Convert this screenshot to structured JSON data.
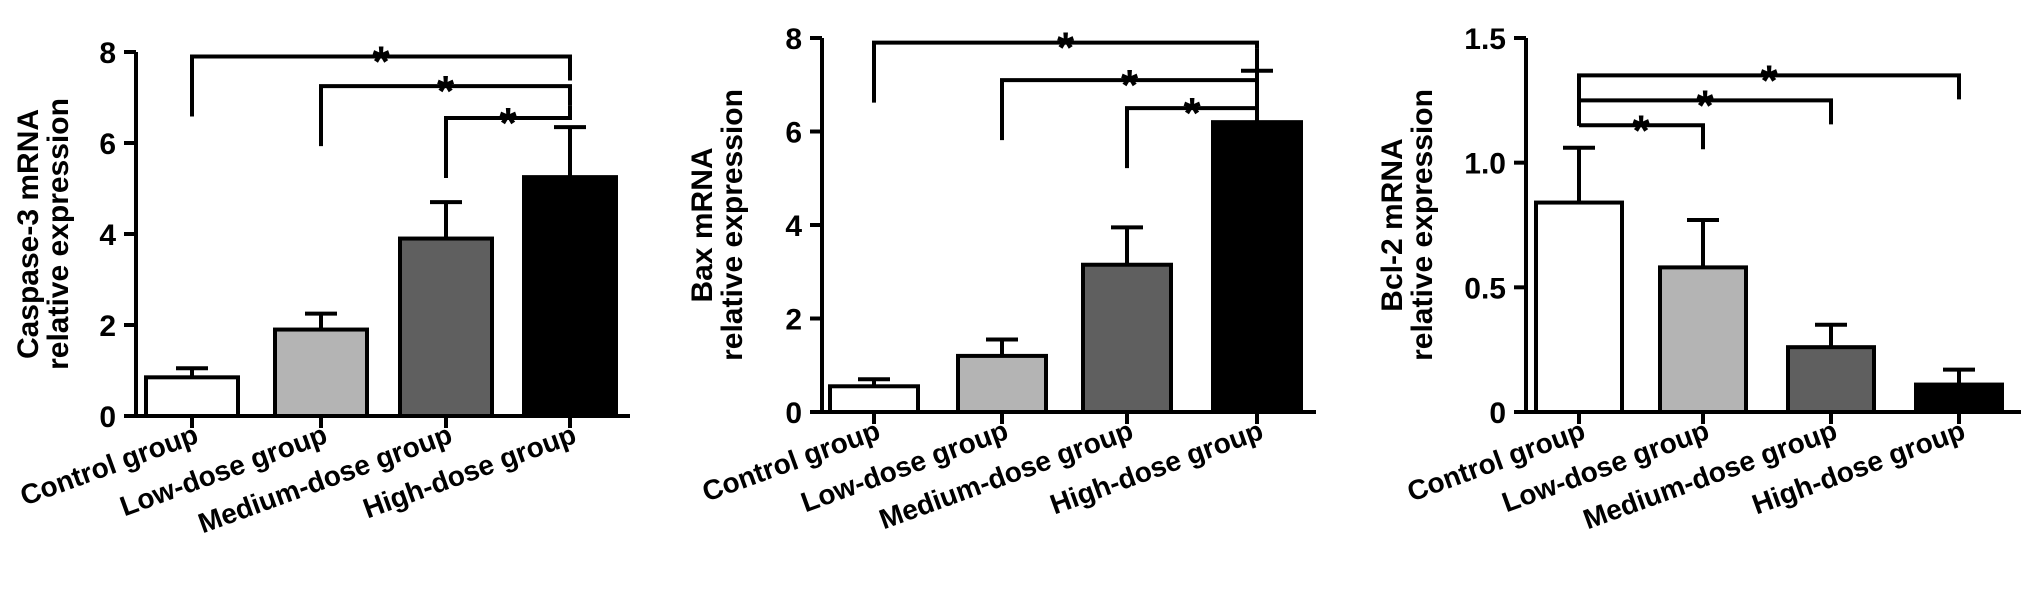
{
  "colors": {
    "axis": "#000000",
    "bar_stroke": "#000000",
    "bar_fills": [
      "#ffffff",
      "#b4b4b4",
      "#5f5f5f",
      "#000000"
    ]
  },
  "chart_data": [
    {
      "type": "bar",
      "title": "",
      "ylabel": "Caspase-3 mRNA relative expression",
      "ylabel_lines": [
        "Caspase-3 mRNA",
        "relative expression"
      ],
      "xlabel": "",
      "categories": [
        "Control group",
        "Low-dose group",
        "Medium-dose group",
        "High-dose group"
      ],
      "values": [
        0.85,
        1.9,
        3.9,
        5.25
      ],
      "errors": [
        0.2,
        0.35,
        0.8,
        1.1
      ],
      "ylim": [
        0,
        8
      ],
      "yticks": [
        0,
        2,
        4,
        6,
        8
      ],
      "ytick_labels": [
        "0",
        "2",
        "4",
        "6",
        "8"
      ],
      "significance": [
        {
          "from": 0,
          "to": 3,
          "level": 7.9,
          "label": "*"
        },
        {
          "from": 1,
          "to": 3,
          "level": 7.25,
          "label": "*"
        },
        {
          "from": 2,
          "to": 3,
          "level": 6.55,
          "label": "*"
        }
      ]
    },
    {
      "type": "bar",
      "title": "",
      "ylabel": "Bax mRNA relative expression",
      "ylabel_lines": [
        "Bax mRNA",
        "relative expression"
      ],
      "xlabel": "",
      "categories": [
        "Control group",
        "Low-dose group",
        "Medium-dose group",
        "High-dose group"
      ],
      "values": [
        0.55,
        1.2,
        3.15,
        6.2
      ],
      "errors": [
        0.15,
        0.35,
        0.8,
        1.1
      ],
      "ylim": [
        0,
        8
      ],
      "yticks": [
        0,
        2,
        4,
        6,
        8
      ],
      "ytick_labels": [
        "0",
        "2",
        "4",
        "6",
        "8"
      ],
      "significance": [
        {
          "from": 0,
          "to": 3,
          "level": 7.9,
          "label": "*"
        },
        {
          "from": 1,
          "to": 3,
          "level": 7.1,
          "label": "*"
        },
        {
          "from": 2,
          "to": 3,
          "level": 6.5,
          "label": "*"
        }
      ]
    },
    {
      "type": "bar",
      "title": "",
      "ylabel": "Bcl-2 mRNA relative expression",
      "ylabel_lines": [
        "Bcl-2 mRNA",
        "relative expression"
      ],
      "xlabel": "",
      "categories": [
        "Control group",
        "Low-dose group",
        "Medium-dose group",
        "High-dose group"
      ],
      "values": [
        0.84,
        0.58,
        0.26,
        0.11
      ],
      "errors": [
        0.22,
        0.19,
        0.09,
        0.06
      ],
      "ylim": [
        0,
        1.5
      ],
      "yticks": [
        0,
        0.5,
        1.0,
        1.5
      ],
      "ytick_labels": [
        "0",
        "0.5",
        "1.0",
        "1.5"
      ],
      "significance": [
        {
          "from": 0,
          "to": 1,
          "level": 1.15,
          "label": "*"
        },
        {
          "from": 0,
          "to": 2,
          "level": 1.25,
          "label": "*"
        },
        {
          "from": 0,
          "to": 3,
          "level": 1.35,
          "label": "*"
        }
      ]
    }
  ]
}
